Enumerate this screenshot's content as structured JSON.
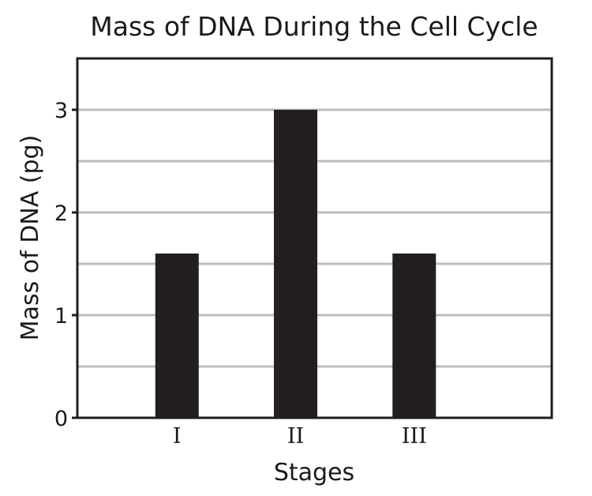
{
  "chart_data": {
    "type": "bar",
    "title": "Mass of DNA During the Cell Cycle",
    "xlabel": "Stages",
    "ylabel": "Mass of DNA (pg)",
    "categories": [
      "I",
      "II",
      "III"
    ],
    "values": [
      1.6,
      3.0,
      1.6
    ],
    "ylim": [
      0,
      3.5
    ],
    "yticks": [
      0,
      1,
      2,
      3
    ],
    "ytick_labels": [
      "0",
      "1",
      "2",
      "3"
    ],
    "minor_gridlines": [
      0.5,
      1.5,
      2.5
    ],
    "grid": true,
    "legend": "none",
    "colors": {
      "bar": "#231f20",
      "grid": "#bdbdbd",
      "axis": "#1e1e1e"
    }
  }
}
